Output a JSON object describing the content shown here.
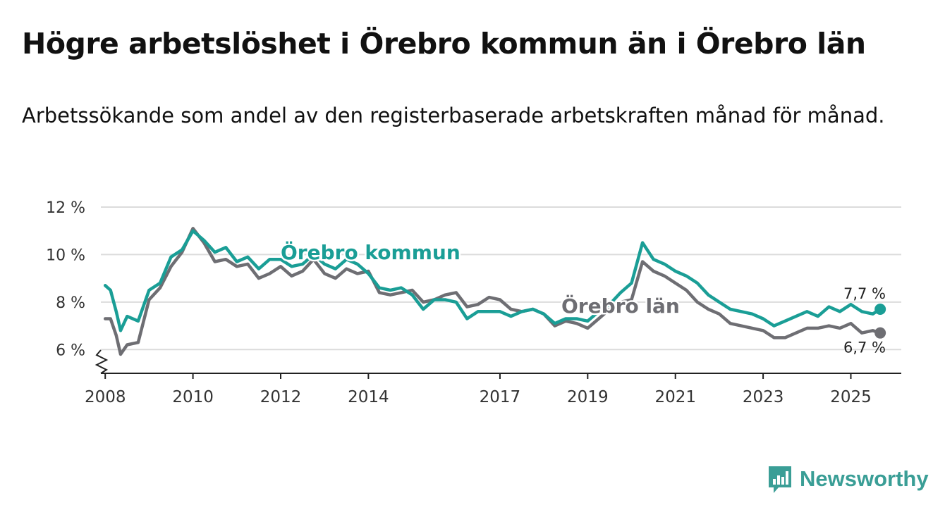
{
  "header": {
    "title": "Högre arbetslöshet i Örebro kommun än i Örebro län",
    "subtitle": "Arbetssökande som andel av den registerbaserade arbetskraften månad för månad."
  },
  "brand": {
    "name": "Newsworthy",
    "icon": "newsworthy-logo-icon",
    "color": "#3a9e96"
  },
  "chart_data": {
    "type": "line",
    "title": "Högre arbetslöshet i Örebro kommun än i Örebro län",
    "subtitle": "Arbetssökande som andel av den registerbaserade arbetskraften månad för månad.",
    "xlabel": "",
    "ylabel": "",
    "xlim": [
      2007.9,
      2026.15
    ],
    "ylim": [
      5,
      12
    ],
    "grid": true,
    "y_ticks": [
      {
        "value": 6,
        "label": "6 %"
      },
      {
        "value": 8,
        "label": "8 %"
      },
      {
        "value": 10,
        "label": "10 %"
      },
      {
        "value": 12,
        "label": "12 %"
      }
    ],
    "x_ticks": [
      {
        "value": 2008,
        "label": "2008"
      },
      {
        "value": 2010,
        "label": "2010"
      },
      {
        "value": 2012,
        "label": "2012"
      },
      {
        "value": 2014,
        "label": "2014"
      },
      {
        "value": 2017,
        "label": "2017"
      },
      {
        "value": 2019,
        "label": "2019"
      },
      {
        "value": 2021,
        "label": "2021"
      },
      {
        "value": 2023,
        "label": "2023"
      },
      {
        "value": 2025,
        "label": "2025"
      }
    ],
    "series": [
      {
        "name": "Örebro län",
        "color": "#6e6e73",
        "end_label": "6,7 %",
        "x": [
          2008.0,
          2008.12,
          2008.25,
          2008.35,
          2008.5,
          2008.75,
          2009.0,
          2009.25,
          2009.5,
          2009.75,
          2010.0,
          2010.25,
          2010.5,
          2010.75,
          2011.0,
          2011.25,
          2011.5,
          2011.75,
          2012.0,
          2012.25,
          2012.5,
          2012.75,
          2013.0,
          2013.25,
          2013.5,
          2013.75,
          2014.0,
          2014.25,
          2014.5,
          2014.75,
          2015.0,
          2015.25,
          2015.5,
          2015.75,
          2016.0,
          2016.25,
          2016.5,
          2016.75,
          2017.0,
          2017.25,
          2017.5,
          2017.75,
          2018.0,
          2018.25,
          2018.5,
          2018.75,
          2019.0,
          2019.25,
          2019.5,
          2019.75,
          2020.0,
          2020.25,
          2020.5,
          2020.75,
          2021.0,
          2021.25,
          2021.5,
          2021.75,
          2022.0,
          2022.25,
          2022.5,
          2022.75,
          2023.0,
          2023.25,
          2023.5,
          2023.75,
          2024.0,
          2024.25,
          2024.5,
          2024.75,
          2025.0,
          2025.25,
          2025.5,
          2025.67
        ],
        "values": [
          7.3,
          7.3,
          6.6,
          5.8,
          6.2,
          6.3,
          8.1,
          8.6,
          9.5,
          10.1,
          11.1,
          10.5,
          9.7,
          9.8,
          9.5,
          9.6,
          9.0,
          9.2,
          9.5,
          9.1,
          9.3,
          9.8,
          9.2,
          9.0,
          9.4,
          9.2,
          9.3,
          8.4,
          8.3,
          8.4,
          8.5,
          8.0,
          8.1,
          8.3,
          8.4,
          7.8,
          7.9,
          8.2,
          8.1,
          7.7,
          7.6,
          7.7,
          7.5,
          7.0,
          7.2,
          7.1,
          6.9,
          7.3,
          7.7,
          8.0,
          8.1,
          9.7,
          9.3,
          9.1,
          8.8,
          8.5,
          8.0,
          7.7,
          7.5,
          7.1,
          7.0,
          6.9,
          6.8,
          6.5,
          6.5,
          6.7,
          6.9,
          6.9,
          7.0,
          6.9,
          7.1,
          6.7,
          6.8,
          6.7
        ]
      },
      {
        "name": "Örebro kommun",
        "color": "#1a9e96",
        "end_label": "7,7 %",
        "x": [
          2008.0,
          2008.12,
          2008.25,
          2008.35,
          2008.5,
          2008.75,
          2009.0,
          2009.25,
          2009.5,
          2009.75,
          2010.0,
          2010.25,
          2010.5,
          2010.75,
          2011.0,
          2011.25,
          2011.5,
          2011.75,
          2012.0,
          2012.25,
          2012.5,
          2012.75,
          2013.0,
          2013.25,
          2013.5,
          2013.75,
          2014.0,
          2014.25,
          2014.5,
          2014.75,
          2015.0,
          2015.25,
          2015.5,
          2015.75,
          2016.0,
          2016.25,
          2016.5,
          2016.75,
          2017.0,
          2017.25,
          2017.5,
          2017.75,
          2018.0,
          2018.25,
          2018.5,
          2018.75,
          2019.0,
          2019.25,
          2019.5,
          2019.75,
          2020.0,
          2020.25,
          2020.5,
          2020.75,
          2021.0,
          2021.25,
          2021.5,
          2021.75,
          2022.0,
          2022.25,
          2022.5,
          2022.75,
          2023.0,
          2023.25,
          2023.5,
          2023.75,
          2024.0,
          2024.25,
          2024.5,
          2024.75,
          2025.0,
          2025.25,
          2025.5,
          2025.67
        ],
        "values": [
          8.7,
          8.5,
          7.6,
          6.8,
          7.4,
          7.2,
          8.5,
          8.8,
          9.9,
          10.2,
          11.0,
          10.6,
          10.1,
          10.3,
          9.7,
          9.9,
          9.4,
          9.8,
          9.8,
          9.5,
          9.6,
          10.0,
          9.6,
          9.4,
          9.8,
          9.6,
          9.2,
          8.6,
          8.5,
          8.6,
          8.3,
          7.7,
          8.1,
          8.1,
          8.0,
          7.3,
          7.6,
          7.6,
          7.6,
          7.4,
          7.6,
          7.7,
          7.5,
          7.1,
          7.3,
          7.3,
          7.2,
          7.6,
          7.9,
          8.4,
          8.8,
          10.5,
          9.8,
          9.6,
          9.3,
          9.1,
          8.8,
          8.3,
          8.0,
          7.7,
          7.6,
          7.5,
          7.3,
          7.0,
          7.2,
          7.4,
          7.6,
          7.4,
          7.8,
          7.6,
          7.9,
          7.6,
          7.5,
          7.7
        ]
      }
    ],
    "annotations": [
      {
        "text": "Örebro kommun",
        "series": "Örebro kommun",
        "x": 2012.0,
        "y": 9.8
      },
      {
        "text": "Örebro län",
        "series": "Örebro län",
        "x": 2018.4,
        "y": 7.55
      }
    ]
  }
}
